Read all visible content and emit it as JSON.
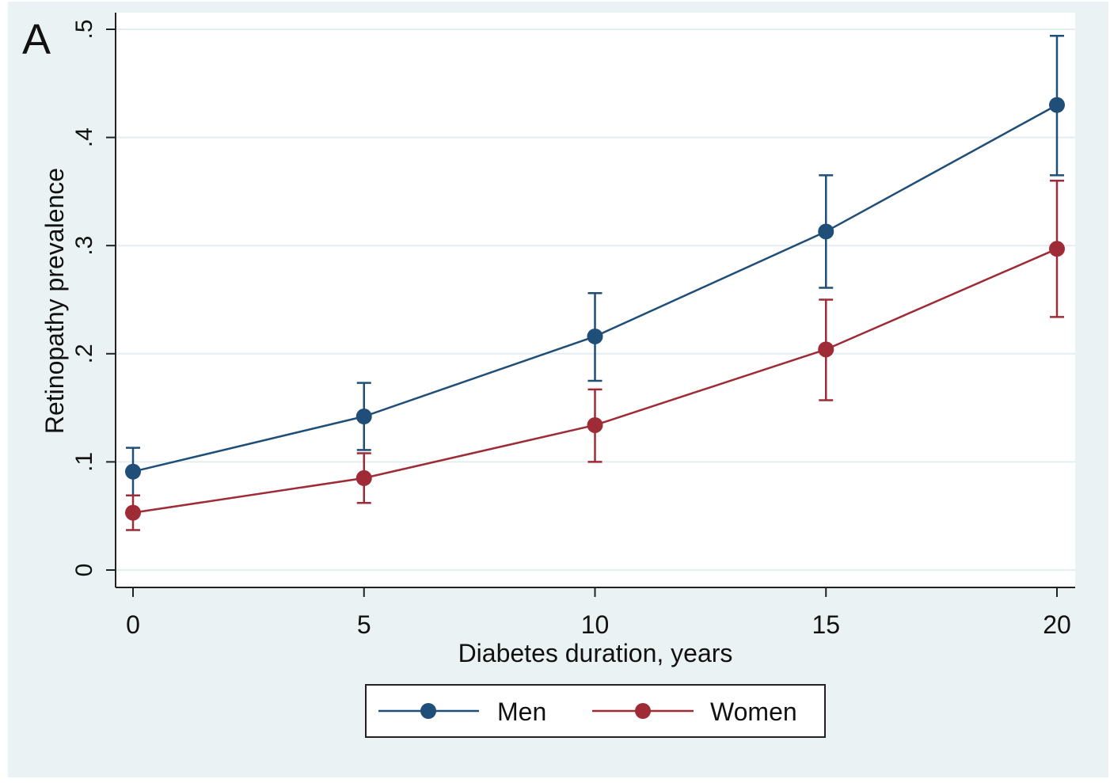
{
  "panel_label": "A",
  "chart_data": {
    "type": "line",
    "xlabel": "Diabetes duration, years",
    "ylabel": "Retinopathy prevalence",
    "x": [
      0,
      5,
      10,
      15,
      20
    ],
    "xlim": [
      0,
      20
    ],
    "ylim": [
      0,
      0.5
    ],
    "x_ticks": [
      0,
      5,
      10,
      15,
      20
    ],
    "x_tick_labels": [
      "0",
      "5",
      "10",
      "15",
      "20"
    ],
    "y_ticks": [
      0,
      0.1,
      0.2,
      0.3,
      0.4,
      0.5
    ],
    "y_tick_labels": [
      "0",
      ".1",
      ".2",
      ".3",
      ".4",
      ".5"
    ],
    "grid": true,
    "legend_position": "bottom",
    "series": [
      {
        "name": "Men",
        "color": "#1f4e79",
        "values": [
          0.091,
          0.142,
          0.216,
          0.313,
          0.43
        ],
        "ci_low": [
          0.069,
          0.111,
          0.175,
          0.261,
          0.365
        ],
        "ci_high": [
          0.113,
          0.173,
          0.256,
          0.365,
          0.494
        ]
      },
      {
        "name": "Women",
        "color": "#9e2b35",
        "values": [
          0.053,
          0.085,
          0.134,
          0.204,
          0.297
        ],
        "ci_low": [
          0.037,
          0.062,
          0.1,
          0.157,
          0.234
        ],
        "ci_high": [
          0.069,
          0.108,
          0.167,
          0.25,
          0.36
        ]
      }
    ]
  }
}
